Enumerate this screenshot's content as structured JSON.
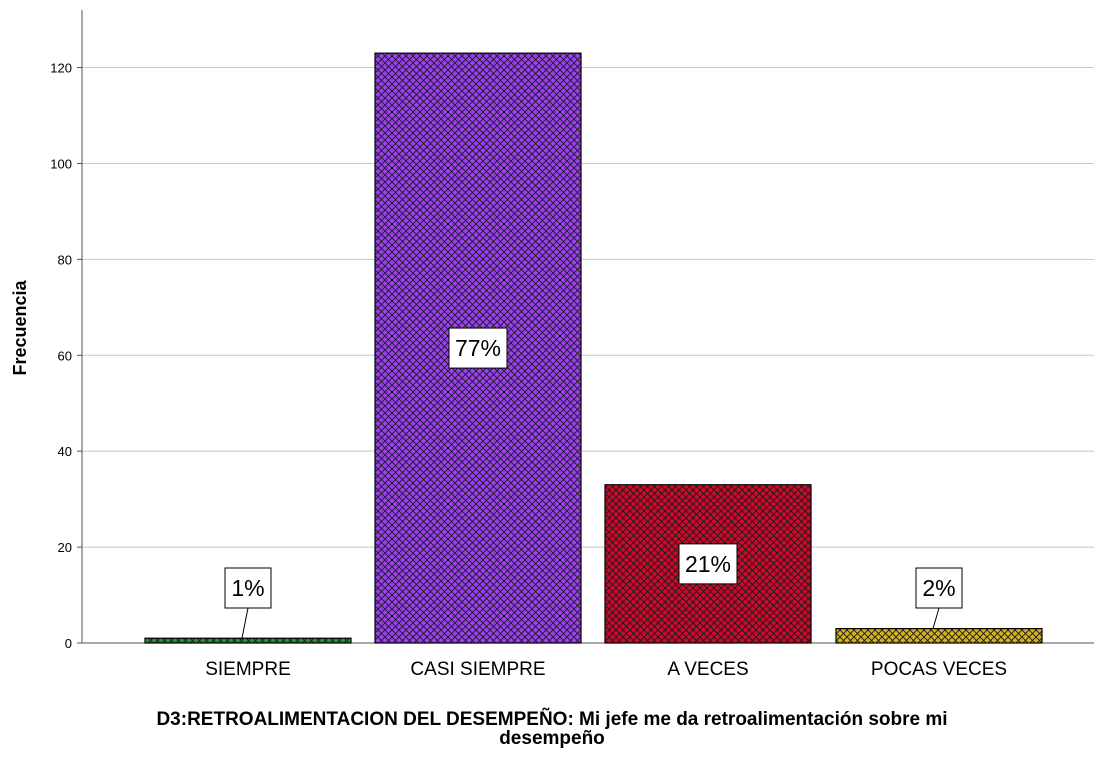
{
  "chart_data": {
    "type": "bar",
    "categories": [
      "SIEMPRE",
      "CASI SIEMPRE",
      "A VECES",
      "POCAS VECES"
    ],
    "values": [
      1,
      123,
      33,
      3
    ],
    "data_labels": [
      "1%",
      "77%",
      "21%",
      "2%"
    ],
    "colors": [
      "#2e8b3a",
      "#9b3ff0",
      "#cc0a2c",
      "#d4b020"
    ],
    "ylabel": "Frecuencia",
    "xlabel_lines": [
      "D3:RETROALIMENTACION DEL DESEMPEÑO: Mi jefe me da retroalimentación sobre mi",
      "desempeño"
    ],
    "yticks": [
      0,
      20,
      40,
      60,
      80,
      100,
      120
    ],
    "ylim": [
      0,
      132
    ],
    "grid": true,
    "pattern": "crosshatch"
  }
}
